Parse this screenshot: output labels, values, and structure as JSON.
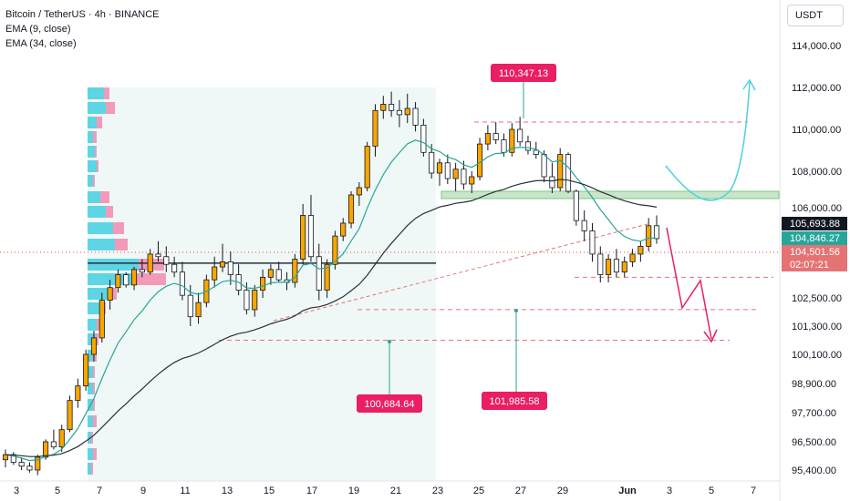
{
  "legend": {
    "title": "Bitcoin / TetherUS · 4h · BINANCE",
    "ema9": "EMA (9, close)",
    "ema34": "EMA (34, close)"
  },
  "currency_button": "USDT",
  "colors": {
    "up": "#f7a600",
    "down": "#131722",
    "ema9": "#26a69a",
    "ema34": "#2a2e39",
    "annotation": "#e91e63",
    "vp_up": "#4dd0e1",
    "vp_down": "#f48fb1",
    "zone": "#c8e6c9",
    "forecast_up": "#4dd0e1",
    "forecast_down": "#e91e63"
  },
  "chart_data": {
    "type": "candlestick",
    "symbol": "BTCUSDT",
    "timeframe": "4h",
    "x_axis_labels": [
      "3",
      "5",
      "7",
      "9",
      "11",
      "13",
      "15",
      "17",
      "19",
      "21",
      "23",
      "25",
      "27",
      "29",
      "Jun",
      "3",
      "5",
      "7"
    ],
    "y_axis_labels": [
      "114,000.00",
      "112,000.00",
      "110,000.00",
      "108,000.00",
      "106,000.00",
      "102,500.00",
      "101,300.00",
      "100,100.00",
      "98,900.00",
      "97,700.00",
      "96,500.00",
      "95,400.00"
    ],
    "ylim": [
      95000,
      115000
    ],
    "price_labels": {
      "ema9": "105,693.88",
      "last": "104,846.27",
      "ema34": "104,501.56",
      "countdown": "02:07:21"
    },
    "annotations": [
      {
        "label": "110,347.13",
        "kind": "high"
      },
      {
        "label": "100,684.64",
        "kind": "support"
      },
      {
        "label": "101,985.58",
        "kind": "support"
      }
    ],
    "levels": {
      "resistance_dashed": 110350,
      "support_zone": [
        106500,
        106900
      ],
      "dashed_1": 103300,
      "dashed_2": 102000,
      "dashed_3": 100700,
      "poc": 103850
    },
    "candles": [
      [
        95800,
        96200,
        95500,
        96000
      ],
      [
        96000,
        96100,
        95600,
        95700
      ],
      [
        95700,
        95900,
        95400,
        95550
      ],
      [
        95550,
        95700,
        95300,
        95400
      ],
      [
        95400,
        96000,
        95200,
        95900
      ],
      [
        95900,
        96600,
        95800,
        96500
      ],
      [
        96500,
        97000,
        96200,
        96300
      ],
      [
        96300,
        97200,
        96100,
        97000
      ],
      [
        97000,
        98400,
        96900,
        98200
      ],
      [
        98200,
        99100,
        97900,
        98800
      ],
      [
        98800,
        100300,
        98600,
        100100
      ],
      [
        100100,
        101100,
        99800,
        100800
      ],
      [
        100800,
        102700,
        100600,
        102400
      ],
      [
        102400,
        103200,
        102000,
        102900
      ],
      [
        102900,
        103600,
        102700,
        103400
      ],
      [
        103400,
        103500,
        102900,
        103000
      ],
      [
        103000,
        103700,
        102800,
        103600
      ],
      [
        103600,
        104000,
        103300,
        103500
      ],
      [
        103500,
        104400,
        103400,
        104200
      ],
      [
        104200,
        104700,
        103900,
        104100
      ],
      [
        104100,
        104500,
        103500,
        103800
      ],
      [
        103800,
        104100,
        103300,
        103500
      ],
      [
        103500,
        103900,
        102400,
        102600
      ],
      [
        102600,
        103000,
        101300,
        101700
      ],
      [
        101700,
        102700,
        101400,
        102300
      ],
      [
        102300,
        103400,
        102100,
        103200
      ],
      [
        103200,
        104100,
        102900,
        103700
      ],
      [
        103700,
        104600,
        103500,
        103900
      ],
      [
        103900,
        104300,
        103000,
        103400
      ],
      [
        103400,
        103800,
        102600,
        102800
      ],
      [
        102800,
        103100,
        101800,
        102000
      ],
      [
        102000,
        103000,
        101700,
        102800
      ],
      [
        102800,
        103600,
        102500,
        103300
      ],
      [
        103300,
        103800,
        103000,
        103600
      ],
      [
        103600,
        103900,
        103100,
        103200
      ],
      [
        103200,
        103500,
        102800,
        103100
      ],
      [
        103100,
        104200,
        102900,
        104000
      ],
      [
        104000,
        106200,
        103800,
        105700
      ],
      [
        105700,
        106700,
        103900,
        104100
      ],
      [
        104100,
        104600,
        102400,
        102800
      ],
      [
        102800,
        104000,
        102500,
        103800
      ],
      [
        103800,
        105100,
        103600,
        104900
      ],
      [
        104900,
        105600,
        104700,
        105400
      ],
      [
        105400,
        106900,
        105200,
        106700
      ],
      [
        106700,
        107400,
        106100,
        107100
      ],
      [
        107100,
        109400,
        106900,
        109200
      ],
      [
        109200,
        111200,
        108700,
        110900
      ],
      [
        110900,
        111600,
        110500,
        111200
      ],
      [
        111200,
        111800,
        110600,
        110900
      ],
      [
        110900,
        111400,
        110100,
        110700
      ],
      [
        110700,
        111700,
        110300,
        111000
      ],
      [
        111000,
        111300,
        109900,
        110200
      ],
      [
        110200,
        110500,
        108700,
        108900
      ],
      [
        108900,
        109300,
        107600,
        107900
      ],
      [
        107900,
        108600,
        107200,
        108400
      ],
      [
        108400,
        108800,
        107300,
        107600
      ],
      [
        107600,
        108400,
        106900,
        108100
      ],
      [
        108100,
        108500,
        107000,
        107300
      ],
      [
        107300,
        108000,
        106800,
        107700
      ],
      [
        107700,
        109600,
        107500,
        109300
      ],
      [
        109300,
        110200,
        109000,
        109800
      ],
      [
        109800,
        110347,
        109300,
        109500
      ],
      [
        109500,
        109800,
        108700,
        108900
      ],
      [
        108900,
        110300,
        108700,
        110000
      ],
      [
        110000,
        110600,
        109200,
        109400
      ],
      [
        109400,
        109700,
        108800,
        109000
      ],
      [
        109000,
        109400,
        108600,
        108800
      ],
      [
        108800,
        109000,
        107400,
        107700
      ],
      [
        107700,
        108400,
        106800,
        107100
      ],
      [
        107100,
        109100,
        106900,
        108800
      ],
      [
        108800,
        108900,
        106800,
        106900
      ],
      [
        106900,
        107000,
        105300,
        105500
      ],
      [
        105500,
        105900,
        104700,
        105100
      ],
      [
        105100,
        105400,
        103900,
        104200
      ],
      [
        104200,
        104500,
        103100,
        103400
      ],
      [
        103400,
        104200,
        103100,
        104000
      ],
      [
        104000,
        104400,
        103300,
        103500
      ],
      [
        103500,
        104100,
        103300,
        103900
      ],
      [
        103900,
        104400,
        103700,
        104200
      ],
      [
        104200,
        104700,
        103900,
        104500
      ],
      [
        104500,
        105600,
        104300,
        105300
      ],
      [
        105300,
        105700,
        104600,
        104800
      ]
    ]
  }
}
